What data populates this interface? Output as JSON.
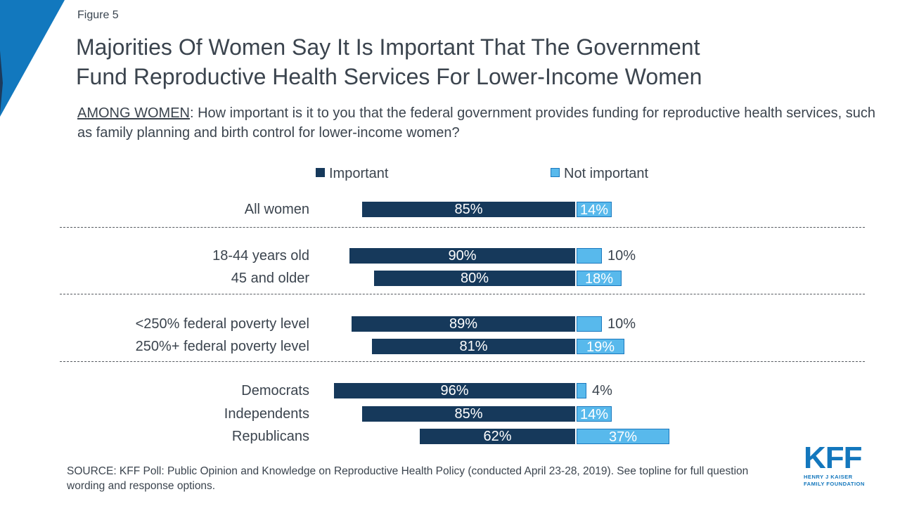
{
  "figure_label": "Figure 5",
  "title": {
    "line1": "Majorities Of Women Say It Is Important That The Government",
    "line2": "Fund Reproductive Health Services For Lower-Income Women"
  },
  "subtitle": {
    "prefix": "AMONG WOMEN",
    "rest": ": How important is it to you that the federal government provides funding for reproductive health services, such as family planning and birth control for lower-income women?"
  },
  "colors": {
    "important": "#16395B",
    "not_important_fill": "#58B9EC",
    "not_important_border": "#1B78BE",
    "brand_blue": "#1278BE",
    "corner_navy": "#1C3A5C",
    "text": "#3B444E"
  },
  "legend": [
    {
      "label": "Important",
      "color": "#16395B"
    },
    {
      "label": "Not important",
      "color": "#58B9EC"
    }
  ],
  "chart_data": {
    "type": "bar",
    "orientation": "horizontal",
    "stacked": true,
    "series_names": [
      "Important",
      "Not important"
    ],
    "rows": [
      {
        "label": "All women",
        "important": 85,
        "not_important": 14,
        "ni_label_pos": "inside",
        "group": 0
      },
      {
        "label": "18-44 years old",
        "important": 90,
        "not_important": 10,
        "ni_label_pos": "outside",
        "group": 1
      },
      {
        "label": "45 and older",
        "important": 80,
        "not_important": 18,
        "ni_label_pos": "inside",
        "group": 1
      },
      {
        "label": "<250% federal poverty level",
        "important": 89,
        "not_important": 10,
        "ni_label_pos": "outside",
        "group": 2
      },
      {
        "label": "250%+ federal poverty level",
        "important": 81,
        "not_important": 19,
        "ni_label_pos": "inside",
        "group": 2
      },
      {
        "label": "Democrats",
        "important": 96,
        "not_important": 4,
        "ni_label_pos": "outside",
        "group": 3
      },
      {
        "label": "Independents",
        "important": 85,
        "not_important": 14,
        "ni_label_pos": "inside",
        "group": 3
      },
      {
        "label": "Republicans",
        "important": 62,
        "not_important": 37,
        "ni_label_pos": "inside",
        "group": 3
      }
    ],
    "value_suffix": "%",
    "axis_range": [
      0,
      100
    ],
    "grid": false,
    "legend_position": "top"
  },
  "source_text": "SOURCE: KFF Poll: Public Opinion and Knowledge on Reproductive Health Policy (conducted April 23-28, 2019). See topline for full question wording and response options.",
  "logo": {
    "main": "KFF",
    "sub_line1": "HENRY J KAISER",
    "sub_line2": "FAMILY FOUNDATION"
  }
}
